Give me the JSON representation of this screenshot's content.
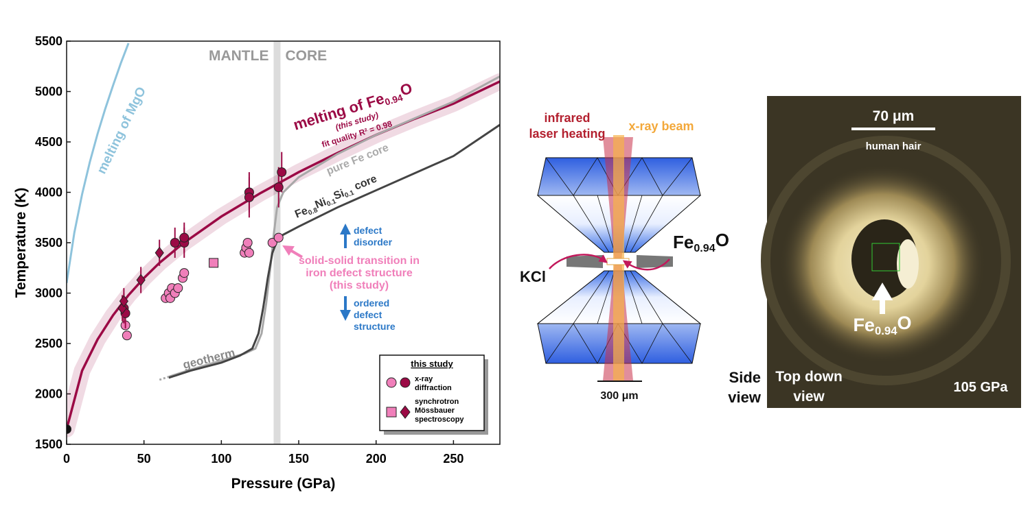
{
  "chart_data": {
    "type": "scatter",
    "xlabel": "Pressure (GPa)",
    "ylabel": "Temperature (K)",
    "xlim": [
      0,
      280
    ],
    "ylim": [
      1500,
      5500
    ],
    "xticks": [
      0,
      50,
      100,
      150,
      200,
      250
    ],
    "yticks": [
      1500,
      2000,
      2500,
      3000,
      3500,
      4000,
      4500,
      5000,
      5500
    ],
    "boundary_pressure": 136,
    "boundary_color": "#dcdcdc",
    "regions": [
      "MANTLE",
      "CORE"
    ],
    "series": [
      {
        "mode": "line",
        "color": "#9b0a45",
        "width": 3.5,
        "band": true,
        "x": [
          0,
          10,
          20,
          30,
          40,
          50,
          60,
          75,
          100,
          125,
          150,
          175,
          200,
          225,
          250,
          280
        ],
        "values": [
          1650,
          2230,
          2540,
          2780,
          2980,
          3150,
          3300,
          3490,
          3760,
          3990,
          4200,
          4390,
          4570,
          4730,
          4880,
          5100
        ]
      },
      {
        "mode": "line",
        "color": "#a8a8a8",
        "width": 3,
        "x": [
          66,
          80,
          100,
          115,
          122,
          126,
          129,
          132,
          134,
          136,
          140,
          150,
          175,
          200,
          250,
          280
        ],
        "values": [
          2170,
          2240,
          2330,
          2400,
          2450,
          2600,
          2900,
          3300,
          3600,
          3850,
          4000,
          4150,
          4380,
          4570,
          4900,
          5150
        ]
      },
      {
        "mode": "line",
        "color": "#444444",
        "width": 3,
        "x": [
          66,
          80,
          100,
          112,
          120,
          124,
          127,
          130,
          133,
          136,
          140,
          150,
          175,
          200,
          250,
          280
        ],
        "values": [
          2160,
          2230,
          2310,
          2380,
          2450,
          2600,
          2850,
          3150,
          3400,
          3520,
          3580,
          3660,
          3850,
          4020,
          4360,
          4670
        ]
      },
      {
        "mode": "line",
        "color": "#a8a8a8",
        "width": 3,
        "dashed": true,
        "x": [
          60,
          66
        ],
        "values": [
          2140,
          2170
        ]
      },
      {
        "mode": "line",
        "color": "#8ec3dc",
        "width": 3,
        "x": [
          0,
          5,
          10,
          15,
          20,
          25,
          30,
          35,
          40
        ],
        "values": [
          3100,
          3600,
          3980,
          4300,
          4580,
          4830,
          5060,
          5280,
          5480
        ]
      },
      {
        "mode": "markers",
        "marker": "circle",
        "color": "#f07fba",
        "x": [
          38,
          39,
          64,
          66,
          67,
          68,
          70,
          72,
          75,
          76,
          115,
          116,
          117,
          118,
          133,
          137
        ],
        "values": [
          2680,
          2580,
          2950,
          3000,
          2950,
          3050,
          3000,
          3050,
          3150,
          3200,
          3400,
          3450,
          3500,
          3400,
          3500,
          3550
        ]
      },
      {
        "mode": "markers",
        "marker": "square",
        "color": "#f07fba",
        "x": [
          95
        ],
        "values": [
          3300
        ]
      },
      {
        "mode": "markers",
        "marker": "circle",
        "color": "#9b0a45",
        "x": [
          37,
          38,
          70,
          76,
          76,
          118,
          118,
          137,
          139
        ],
        "values": [
          2850,
          2800,
          3500,
          3500,
          3550,
          4000,
          3950,
          4050,
          4200
        ],
        "yerr": [
          150,
          150,
          150,
          150,
          150,
          200,
          200,
          200,
          200
        ]
      },
      {
        "mode": "markers",
        "marker": "diamond",
        "color": "#9b0a45",
        "x": [
          36,
          37,
          48,
          60
        ],
        "values": [
          2850,
          2920,
          3130,
          3400
        ],
        "yerr": [
          130,
          130,
          130,
          130
        ]
      },
      {
        "mode": "markers",
        "marker": "circle",
        "color": "#111111",
        "x": [
          0
        ],
        "values": [
          1650
        ]
      }
    ],
    "legend": {
      "title": "this study",
      "entries": [
        [
          "x-ray",
          "diffraction"
        ],
        [
          "synchrotron",
          "Mössbauer",
          "spectroscopy"
        ]
      ]
    },
    "annotations": {
      "fe_melting": [
        "melting of Fe",
        "0.94",
        "O"
      ],
      "fe_study": "(this study)",
      "fe_fit": "fit quality R² = 0.98",
      "pure_fe": "pure Fe core",
      "alloy": [
        "Fe",
        "0.8",
        "Ni",
        "0.1",
        "Si",
        "0.1",
        " core"
      ],
      "geotherm": "geotherm",
      "mgo": "melting of MgO",
      "disorder": [
        "defect",
        "disorder"
      ],
      "transition": [
        "solid-solid transition in",
        "iron defect structure",
        "(this study)"
      ],
      "ordered": [
        "ordered",
        "defect",
        "structure"
      ]
    }
  },
  "diagram": {
    "laser": [
      "infrared",
      "laser heating"
    ],
    "xray": "x-ray beam",
    "kcl": "KCl",
    "sample": [
      "Fe",
      "0.94",
      "O"
    ],
    "scale": "300 μm"
  },
  "photo": {
    "scale": "70 μm",
    "note": "human hair",
    "sample": [
      "Fe",
      "0.94",
      "O"
    ],
    "view": [
      "Top down",
      "view"
    ],
    "pressure": "105 GPa",
    "side": [
      "Side",
      "view"
    ]
  }
}
